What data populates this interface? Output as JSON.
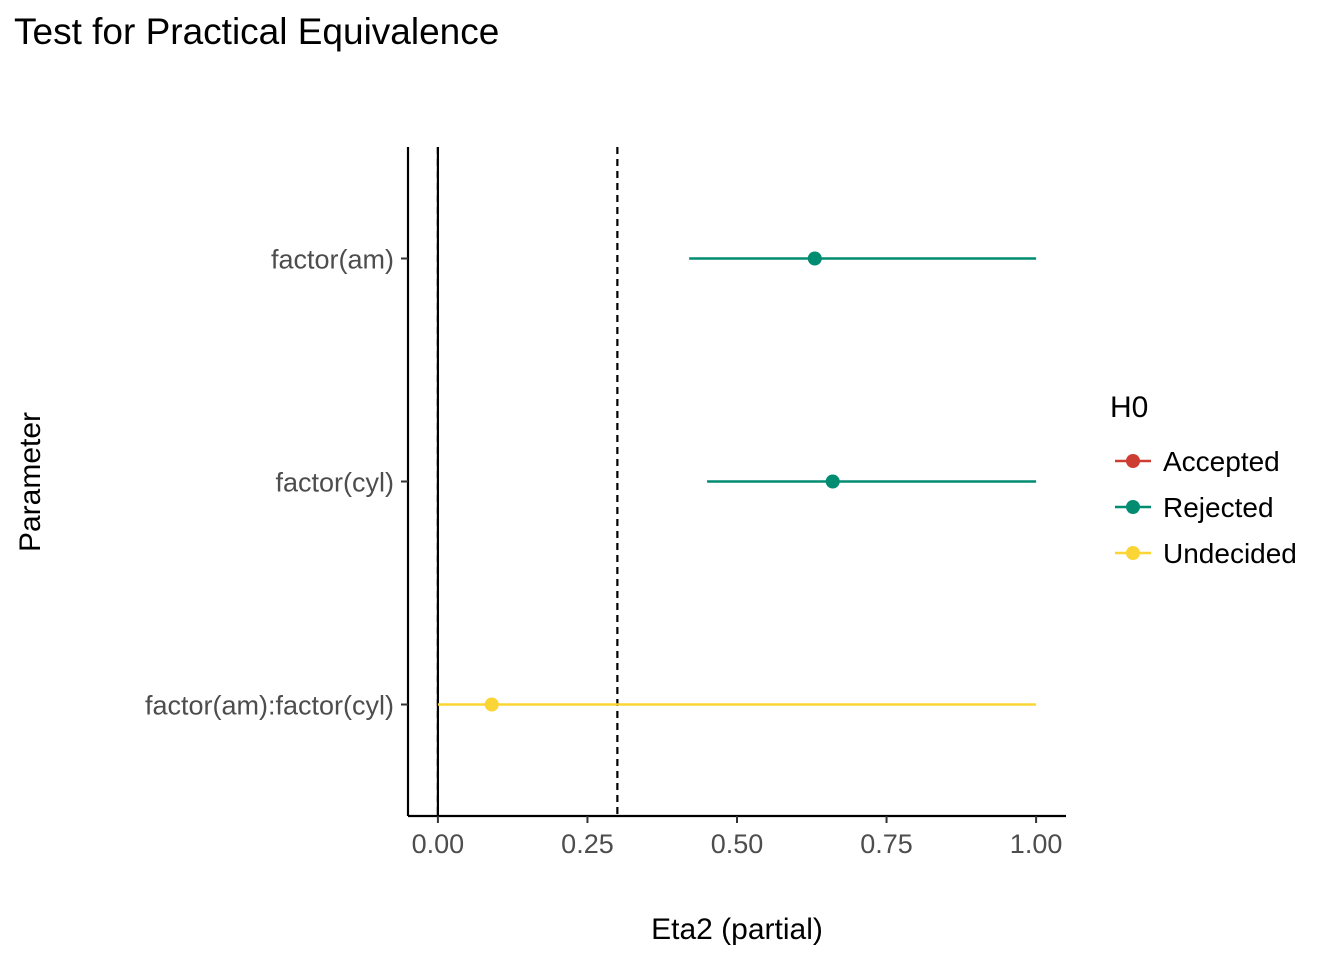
{
  "chart_data": {
    "type": "forest",
    "title": "Test for Practical Equivalence",
    "xlabel": "Eta2 (partial)",
    "ylabel": "Parameter",
    "xlim": [
      -0.05,
      1.05
    ],
    "x_ticks": [
      0.0,
      0.25,
      0.5,
      0.75,
      1.0
    ],
    "x_tick_labels": [
      "0.00",
      "0.25",
      "0.50",
      "0.75",
      "1.00"
    ],
    "rope": [
      0.0,
      0.3
    ],
    "reference_line": 0.0,
    "categories": [
      "factor(am)",
      "factor(cyl)",
      "factor(am):factor(cyl)"
    ],
    "points": [
      {
        "parameter": "factor(am)",
        "estimate": 0.63,
        "ci_low": 0.42,
        "ci_high": 1.0,
        "h0": "Rejected"
      },
      {
        "parameter": "factor(cyl)",
        "estimate": 0.66,
        "ci_low": 0.45,
        "ci_high": 1.0,
        "h0": "Rejected"
      },
      {
        "parameter": "factor(am):factor(cyl)",
        "estimate": 0.09,
        "ci_low": 0.0,
        "ci_high": 1.0,
        "h0": "Undecided"
      }
    ],
    "legend": {
      "title": "H0",
      "position": "right",
      "entries": [
        {
          "label": "Accepted",
          "color": "#CD3D32"
        },
        {
          "label": "Rejected",
          "color": "#008C71"
        },
        {
          "label": "Undecided",
          "color": "#FBD535"
        }
      ]
    },
    "grid": false
  }
}
